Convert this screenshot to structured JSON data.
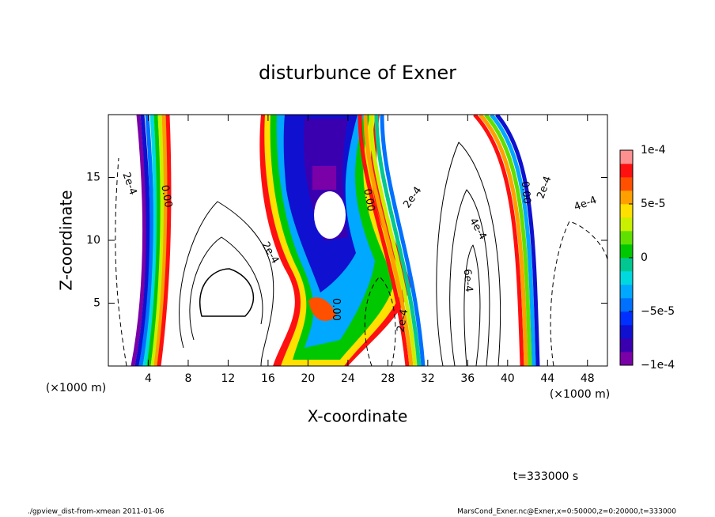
{
  "chart_data": {
    "type": "contour",
    "title": "disturbunce of Exner",
    "x_label": "X-coordinate",
    "y_label": "Z-coordinate",
    "x_unit": "(×1000 m)",
    "y_unit": "(×1000 m)",
    "xlim": [
      0,
      50
    ],
    "xticks": [
      4,
      8,
      12,
      16,
      20,
      24,
      28,
      32,
      36,
      40,
      44,
      48
    ],
    "ylim": [
      0,
      20
    ],
    "yticks": [
      5,
      10,
      15
    ],
    "clim": [
      -0.0001,
      0.0001
    ],
    "cticks": [
      {
        "value": -0.0001,
        "label": "−1e-4"
      },
      {
        "value": -5e-05,
        "label": "−5e-5"
      },
      0,
      {
        "value": 5e-05,
        "label": "5e-5"
      },
      {
        "value": 0.0001,
        "label": "1e-4"
      }
    ],
    "colorscale": [
      "#7a00a8",
      "#3a00b0",
      "#1010d0",
      "#0030ff",
      "#0070ff",
      "#00a8ff",
      "#00d8e0",
      "#00c890",
      "#00c800",
      "#60e000",
      "#c8f000",
      "#ffe000",
      "#ffa000",
      "#ff5000",
      "#ff1010",
      "#ff9090"
    ],
    "contour_labels": [
      {
        "text": "2e-4",
        "x": 2.1,
        "y": 14.5
      },
      {
        "text": "0.00",
        "x": 5.8,
        "y": 13.5
      },
      {
        "text": "2e-4",
        "x": 16.2,
        "y": 9
      },
      {
        "text": "0.00",
        "x": 22.8,
        "y": 4.5
      },
      {
        "text": "0.00",
        "x": 26.1,
        "y": 13.2
      },
      {
        "text": "2e-4",
        "x": 30.5,
        "y": 13.4
      },
      {
        "text": "4e-4",
        "x": 37,
        "y": 10.9
      },
      {
        "text": "6e-4",
        "x": 36,
        "y": 6.8
      },
      {
        "text": "2e-4",
        "x": 29.5,
        "y": 3.6
      },
      {
        "text": "0.00",
        "x": 41.8,
        "y": 13.8
      },
      {
        "text": "2e-4",
        "x": 43.7,
        "y": 14.2
      },
      {
        "text": "4e-4",
        "x": 47.8,
        "y": 12.9
      }
    ],
    "annotation": "t=333000 s",
    "footer_left": "./gpview_dist-from-xmean   2011-01-06",
    "footer_right": "MarsCond_Exner.nc@Exner,x=0:50000,z=0:20000,t=333000"
  }
}
